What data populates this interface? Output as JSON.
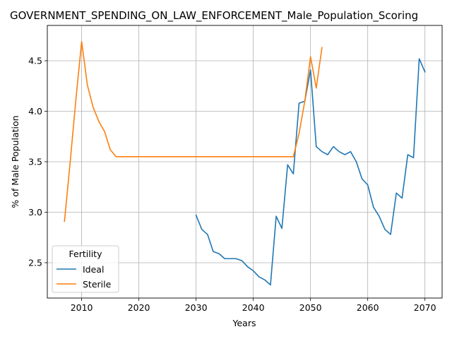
{
  "chart_data": {
    "type": "line",
    "title": "GOVERNMENT_SPENDING_ON_LAW_ENFORCEMENT_Male_Population_Scoring",
    "xlabel": "Years",
    "ylabel": "% of Male Population",
    "xlim": [
      2004,
      2073
    ],
    "ylim": [
      2.15,
      4.85
    ],
    "xticks": [
      2010,
      2020,
      2030,
      2040,
      2050,
      2060,
      2070
    ],
    "yticks": [
      2.5,
      3.0,
      3.5,
      4.0,
      4.5
    ],
    "ytick_labels": [
      "2.5",
      "3.0",
      "3.5",
      "4.0",
      "4.5"
    ],
    "grid": true,
    "legend": {
      "title": "Fertility",
      "placement": "lower-left"
    },
    "series": [
      {
        "name": "Ideal",
        "color": "#1f77b4",
        "x": [
          2030,
          2031,
          2032,
          2033,
          2034,
          2035,
          2036,
          2037,
          2038,
          2039,
          2040,
          2041,
          2042,
          2043,
          2044,
          2045,
          2046,
          2047,
          2048,
          2049,
          2050,
          2051,
          2052,
          2053,
          2054,
          2055,
          2056,
          2057,
          2058,
          2059,
          2060,
          2061,
          2062,
          2063,
          2064,
          2065,
          2066,
          2067,
          2068,
          2069,
          2070
        ],
        "y": [
          2.97,
          2.83,
          2.78,
          2.61,
          2.59,
          2.54,
          2.54,
          2.54,
          2.52,
          2.46,
          2.42,
          2.36,
          2.33,
          2.28,
          2.96,
          2.84,
          3.47,
          3.38,
          4.08,
          4.1,
          4.41,
          3.65,
          3.6,
          3.57,
          3.65,
          3.6,
          3.57,
          3.6,
          3.5,
          3.33,
          3.27,
          3.05,
          2.96,
          2.83,
          2.78,
          3.19,
          3.14,
          3.57,
          3.54,
          4.52,
          4.39
        ]
      },
      {
        "name": "Sterile",
        "color": "#ff7f0e",
        "x": [
          2007,
          2008,
          2009,
          2010,
          2011,
          2012,
          2013,
          2014,
          2015,
          2016,
          2017,
          2018,
          2019,
          2020,
          2021,
          2022,
          2023,
          2024,
          2025,
          2026,
          2027,
          2028,
          2029,
          2030,
          2031,
          2032,
          2033,
          2034,
          2035,
          2036,
          2037,
          2038,
          2039,
          2040,
          2041,
          2042,
          2043,
          2044,
          2045,
          2046,
          2047,
          2048,
          2049,
          2050,
          2051,
          2052
        ],
        "y": [
          2.91,
          3.5,
          4.12,
          4.69,
          4.26,
          4.04,
          3.9,
          3.8,
          3.62,
          3.55,
          3.55,
          3.55,
          3.55,
          3.55,
          3.55,
          3.55,
          3.55,
          3.55,
          3.55,
          3.55,
          3.55,
          3.55,
          3.55,
          3.55,
          3.55,
          3.55,
          3.55,
          3.55,
          3.55,
          3.55,
          3.55,
          3.55,
          3.55,
          3.55,
          3.55,
          3.55,
          3.55,
          3.55,
          3.55,
          3.55,
          3.55,
          3.78,
          4.1,
          4.54,
          4.23,
          4.63
        ]
      }
    ]
  }
}
